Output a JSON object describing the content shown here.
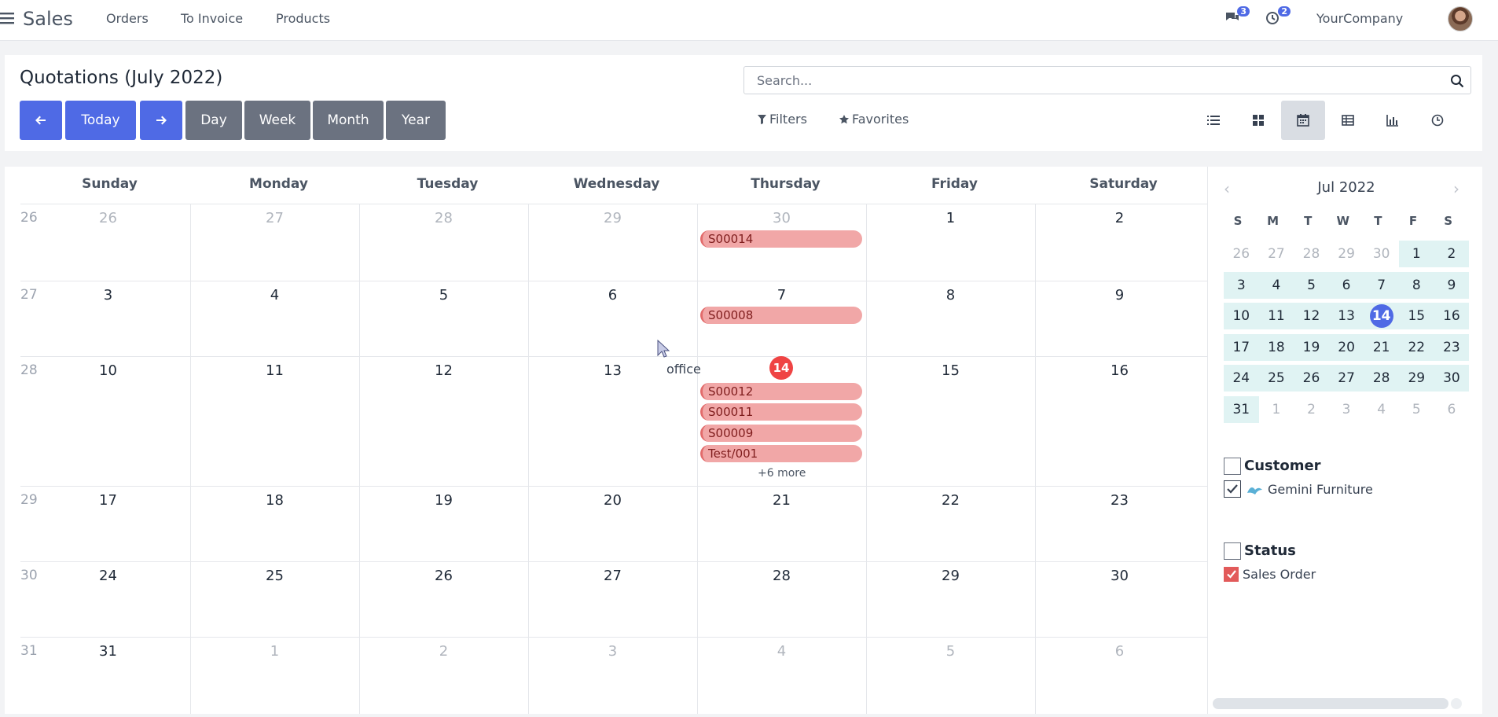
{
  "topbar": {
    "app_name": "Sales",
    "nav": [
      "Orders",
      "To Invoice",
      "Products"
    ],
    "messages_count": "3",
    "activities_count": "2",
    "company": "YourCompany"
  },
  "control_panel": {
    "title": "Quotations (July 2022)",
    "today_label": "Today",
    "scale_buttons": [
      "Day",
      "Week",
      "Month",
      "Year"
    ],
    "search_placeholder": "Search...",
    "filters_label": "Filters",
    "favorites_label": "Favorites",
    "views": [
      "list-view-icon",
      "kanban-view-icon",
      "calendar-view-icon",
      "pivot-view-icon",
      "graph-view-icon",
      "activity-view-icon"
    ],
    "active_view": "calendar-view-icon"
  },
  "calendar": {
    "weekdays": [
      "Sunday",
      "Monday",
      "Tuesday",
      "Wednesday",
      "Thursday",
      "Friday",
      "Saturday"
    ],
    "weeks": [
      {
        "week": "26",
        "days": [
          {
            "d": "26",
            "m": true
          },
          {
            "d": "27",
            "m": true
          },
          {
            "d": "28",
            "m": true
          },
          {
            "d": "29",
            "m": true
          },
          {
            "d": "30",
            "m": true
          },
          {
            "d": "1",
            "m": false
          },
          {
            "d": "2",
            "m": false
          }
        ]
      },
      {
        "week": "27",
        "days": [
          {
            "d": "3",
            "m": false
          },
          {
            "d": "4",
            "m": false
          },
          {
            "d": "5",
            "m": false
          },
          {
            "d": "6",
            "m": false
          },
          {
            "d": "7",
            "m": false
          },
          {
            "d": "8",
            "m": false
          },
          {
            "d": "9",
            "m": false
          }
        ]
      },
      {
        "week": "28",
        "days": [
          {
            "d": "10",
            "m": false
          },
          {
            "d": "11",
            "m": false
          },
          {
            "d": "12",
            "m": false
          },
          {
            "d": "13",
            "m": false
          },
          {
            "d": "14",
            "m": false
          },
          {
            "d": "15",
            "m": false
          },
          {
            "d": "16",
            "m": false
          }
        ]
      },
      {
        "week": "29",
        "days": [
          {
            "d": "17",
            "m": false
          },
          {
            "d": "18",
            "m": false
          },
          {
            "d": "19",
            "m": false
          },
          {
            "d": "20",
            "m": false
          },
          {
            "d": "21",
            "m": false
          },
          {
            "d": "22",
            "m": false
          },
          {
            "d": "23",
            "m": false
          }
        ]
      },
      {
        "week": "30",
        "days": [
          {
            "d": "24",
            "m": false
          },
          {
            "d": "25",
            "m": false
          },
          {
            "d": "26",
            "m": false
          },
          {
            "d": "27",
            "m": false
          },
          {
            "d": "28",
            "m": false
          },
          {
            "d": "29",
            "m": false
          },
          {
            "d": "30",
            "m": false
          }
        ]
      },
      {
        "week": "31",
        "days": [
          {
            "d": "31",
            "m": false
          },
          {
            "d": "1",
            "m": true
          },
          {
            "d": "2",
            "m": true
          },
          {
            "d": "3",
            "m": true
          },
          {
            "d": "4",
            "m": true
          },
          {
            "d": "5",
            "m": true
          },
          {
            "d": "6",
            "m": true
          }
        ]
      }
    ],
    "events": {
      "week1": [
        "S00014"
      ],
      "week2": [
        "S00008"
      ],
      "week3": [
        "S00012",
        "S00011",
        "S00009",
        "Test/001"
      ]
    },
    "today": "14",
    "more_label": "+6 more",
    "hover_tooltip": "office"
  },
  "mini_calendar": {
    "title": "Jul 2022",
    "weekdays": [
      "S",
      "M",
      "T",
      "W",
      "T",
      "F",
      "S"
    ],
    "weeks": [
      [
        {
          "d": "26",
          "m": true
        },
        {
          "d": "27",
          "m": true
        },
        {
          "d": "28",
          "m": true
        },
        {
          "d": "29",
          "m": true
        },
        {
          "d": "30",
          "m": true
        },
        {
          "d": "1",
          "m": false
        },
        {
          "d": "2",
          "m": false
        }
      ],
      [
        {
          "d": "3",
          "m": false
        },
        {
          "d": "4",
          "m": false
        },
        {
          "d": "5",
          "m": false
        },
        {
          "d": "6",
          "m": false
        },
        {
          "d": "7",
          "m": false
        },
        {
          "d": "8",
          "m": false
        },
        {
          "d": "9",
          "m": false
        }
      ],
      [
        {
          "d": "10",
          "m": false
        },
        {
          "d": "11",
          "m": false
        },
        {
          "d": "12",
          "m": false
        },
        {
          "d": "13",
          "m": false
        },
        {
          "d": "14",
          "m": false,
          "today": true
        },
        {
          "d": "15",
          "m": false
        },
        {
          "d": "16",
          "m": false
        }
      ],
      [
        {
          "d": "17",
          "m": false
        },
        {
          "d": "18",
          "m": false
        },
        {
          "d": "19",
          "m": false
        },
        {
          "d": "20",
          "m": false
        },
        {
          "d": "21",
          "m": false
        },
        {
          "d": "22",
          "m": false
        },
        {
          "d": "23",
          "m": false
        }
      ],
      [
        {
          "d": "24",
          "m": false
        },
        {
          "d": "25",
          "m": false
        },
        {
          "d": "26",
          "m": false
        },
        {
          "d": "27",
          "m": false
        },
        {
          "d": "28",
          "m": false
        },
        {
          "d": "29",
          "m": false
        },
        {
          "d": "30",
          "m": false
        }
      ],
      [
        {
          "d": "31",
          "m": false
        },
        {
          "d": "1",
          "m": true
        },
        {
          "d": "2",
          "m": true
        },
        {
          "d": "3",
          "m": true
        },
        {
          "d": "4",
          "m": true
        },
        {
          "d": "5",
          "m": true
        },
        {
          "d": "6",
          "m": true
        }
      ]
    ]
  },
  "filters": {
    "customer_title": "Customer",
    "customer_items": [
      "Gemini Furniture"
    ],
    "status_title": "Status",
    "status_items": [
      "Sales Order"
    ]
  },
  "colors": {
    "primary": "#4f6ae5",
    "secondary": "#6b7280",
    "event_bg": "#f1a7a7",
    "today_badge": "#ef4444"
  }
}
